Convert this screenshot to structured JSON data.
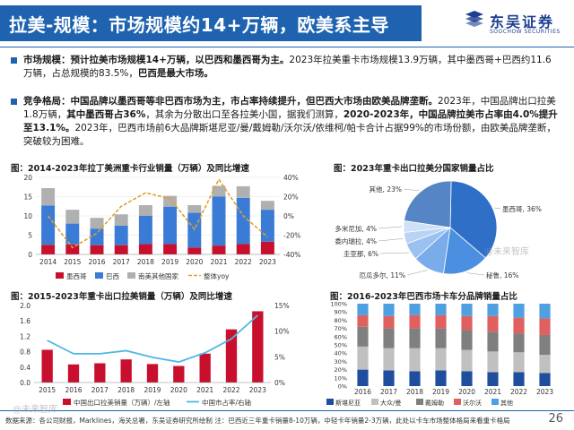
{
  "header": {
    "title": "拉美-规模：市场规模约14+万辆，欧美系主导",
    "logo_cn": "东吴证券",
    "logo_en": "SOOCHOW SECURITIES"
  },
  "bullets": [
    {
      "lead": "市场规模：",
      "bold1": "预计拉美市场规模14+万辆，以巴西和墨西哥为主。",
      "text1": "2023年拉美重卡市场规模13.9万辆，其中墨西哥+巴西约11.6万辆，占总规模的83.5%，",
      "bold2": "巴西是最大市场。"
    },
    {
      "lead": "竞争格局：",
      "bold1": "中国品牌以墨西哥等非巴西市场为主，市占率持续提升，但巴西大市场由欧美品牌垄断。",
      "text1": "2023年，中国品牌出口拉美1.8万辆，",
      "bold2": "其中墨西哥占36%",
      "text2": "，其余为分散出口至各拉美小国，据我们测算，",
      "bold3": "2020-2023年，中国品牌拉美市占率由4.0%提升至13.1%。",
      "text3": "2023年，巴西市场前6大品牌斯堪尼亚/曼/戴姆勒/沃尔沃/依维柯/帕卡合计占据99%的市场份额，由欧美品牌垄断，突破较为困难。"
    }
  ],
  "sections": {
    "s1": "图：2014-2023年拉丁美洲重卡行业销量（万辆）及同比增速",
    "s2": "图：2023年重卡出口拉美分国家销量占比",
    "s3": "图：2015-2023年重卡出口拉美销量（万辆）及同比增速",
    "s4": "图：2016-2023年巴西市场卡车分品牌销量占比"
  },
  "colors": {
    "brand": "#1f63b0",
    "red": "#c8102e",
    "blue": "#3a7bd5",
    "gray": "#b0b0b0",
    "line": "#e0a030",
    "cyan": "#4fb8e6"
  },
  "chart_data": [
    {
      "type": "bar",
      "stacked": true,
      "categories": [
        "2014",
        "2015",
        "2016",
        "2017",
        "2018",
        "2019",
        "2020",
        "2021",
        "2022",
        "2023"
      ],
      "series": [
        {
          "name": "墨西哥",
          "values": [
            2.5,
            2.6,
            2.4,
            2.4,
            2.7,
            2.7,
            1.8,
            2.3,
            2.7,
            3.3
          ]
        },
        {
          "name": "巴西",
          "values": [
            10.2,
            5.4,
            4.3,
            5.1,
            7.3,
            9.7,
            9.0,
            12.7,
            12.0,
            8.3
          ]
        },
        {
          "name": "南美其他国家",
          "values": [
            4.5,
            3.6,
            2.8,
            2.9,
            2.8,
            2.8,
            2.0,
            2.8,
            3.0,
            2.3
          ]
        }
      ],
      "yoy": {
        "name": "整体yoy",
        "values": [
          0,
          -33,
          -18,
          10,
          24,
          18,
          -14,
          38,
          0,
          -22
        ]
      },
      "ylim": [
        0,
        20
      ],
      "yticks": [
        0,
        5,
        10,
        15,
        20
      ],
      "y2lim": [
        -40,
        40
      ],
      "y2ticks": [
        "40%",
        "20%",
        "0%",
        "-20%",
        "-40%"
      ]
    },
    {
      "type": "pie",
      "slices": [
        {
          "label": "墨西哥, 36%",
          "value": 36,
          "color": "#2f6fc8"
        },
        {
          "label": "秘鲁, 16%",
          "value": 16,
          "color": "#4b8fe0"
        },
        {
          "label": "厄瓜多尔, 11%",
          "value": 11,
          "color": "#7aaceb"
        },
        {
          "label": "圭亚那, 6%",
          "value": 6,
          "color": "#9cc1f0"
        },
        {
          "label": "委内瑞拉, 4%",
          "value": 4,
          "color": "#b8d3f4"
        },
        {
          "label": "多米尼加, 4%",
          "value": 4,
          "color": "#cfe0f7"
        },
        {
          "label": "其他, 23%",
          "value": 23,
          "color": "#5585c4"
        }
      ]
    },
    {
      "type": "bar",
      "categories": [
        "2015",
        "2016",
        "2017",
        "2018",
        "2019",
        "2020",
        "2021",
        "2022",
        "2023"
      ],
      "series": [
        {
          "name": "中国出口拉美销量（万辆）/左轴",
          "values": [
            0.85,
            0.47,
            0.5,
            0.6,
            0.48,
            0.43,
            0.75,
            1.38,
            1.85
          ]
        }
      ],
      "yoy": {
        "name": "中国市占率/右轴",
        "values": [
          8.2,
          5.6,
          5.6,
          6.2,
          4.9,
          4.0,
          5.8,
          8.5,
          13.1
        ]
      },
      "ylim": [
        0,
        2
      ],
      "yticks": [
        "0.0",
        "0.4",
        "0.6",
        "0.8",
        "1.0",
        "1.2",
        "1.4",
        "1.6",
        "1.8",
        "2.0"
      ],
      "y2lim": [
        0,
        15
      ],
      "y2ticks": [
        "15%",
        "10%",
        "5%",
        "0%"
      ]
    },
    {
      "type": "bar",
      "stacked": true,
      "percent": true,
      "categories": [
        "2016",
        "2017",
        "2018",
        "2019",
        "2020",
        "2021",
        "2022",
        "2023"
      ],
      "series": [
        {
          "name": "斯堪尼亚",
          "values": [
            20,
            19,
            18,
            19,
            18,
            17,
            17,
            16
          ],
          "color": "#1f4e9e"
        },
        {
          "name": "大众/曼",
          "values": [
            28,
            27,
            28,
            27,
            26,
            25,
            24,
            22
          ],
          "color": "#c0c0c0"
        },
        {
          "name": "戴姆勒",
          "values": [
            24,
            24,
            24,
            24,
            24,
            24,
            23,
            24
          ],
          "color": "#7f7f7f"
        },
        {
          "name": "沃尔沃",
          "values": [
            14,
            15,
            16,
            16,
            17,
            19,
            19,
            20
          ],
          "color": "#e06060"
        },
        {
          "name": "其他",
          "values": [
            14,
            15,
            14,
            14,
            15,
            15,
            17,
            18
          ],
          "color": "#4fa0e0"
        }
      ],
      "ylim": [
        0,
        100
      ],
      "yticks": [
        "0%",
        "10%",
        "20%",
        "30%",
        "40%",
        "50%",
        "60%",
        "70%",
        "80%",
        "90%",
        "100%"
      ]
    }
  ],
  "footer": {
    "source": "数据来源：各公司财报，Marklines，海关总署，东吴证券研究所绘制 注：巴西近三年重卡销量8-10万辆，中轻卡年销量2-3万辆，此处以卡车市场整体格局来看重卡格局",
    "page": "26",
    "watermark1": "@未来智库",
    "watermark2": "@未来智库"
  }
}
